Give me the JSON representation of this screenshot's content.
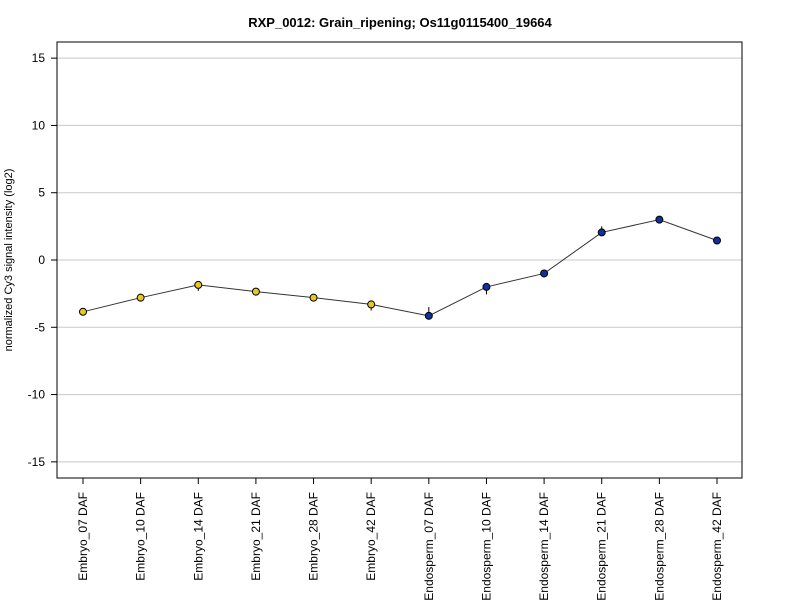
{
  "chart_data": {
    "type": "line",
    "title": "RXP_0012: Grain_ripening; Os11g0115400_19664",
    "xlabel": "",
    "ylabel": "normalized Cy3 signal intensity (log2)",
    "ylim": [
      -16.2,
      16.2
    ],
    "yticks": [
      -15,
      -10,
      -5,
      0,
      5,
      10,
      15
    ],
    "grid": true,
    "categories": [
      "Embryo_07 DAF",
      "Embryo_10 DAF",
      "Embryo_14 DAF",
      "Embryo_21 DAF",
      "Embryo_28 DAF",
      "Embryo_42 DAF",
      "Endosperm_07 DAF",
      "Endosperm_10 DAF",
      "Endosperm_14 DAF",
      "Endosperm_21 DAF",
      "Endosperm_28 DAF",
      "Endosperm_42 DAF"
    ],
    "series": [
      {
        "values": [
          -3.85,
          -2.8,
          -1.85,
          -2.35,
          -2.8,
          -3.3,
          -4.15,
          -2.0,
          -1.0,
          2.05,
          3.0,
          1.45
        ],
        "err_low": [
          -4.1,
          -2.9,
          -2.3,
          -2.45,
          -2.95,
          -3.75,
          -4.4,
          -2.55,
          -1.05,
          1.85,
          2.9,
          1.25
        ],
        "err_high": [
          -3.65,
          -2.7,
          -1.75,
          -2.2,
          -2.55,
          -3.05,
          -3.5,
          -1.85,
          -0.8,
          2.5,
          3.1,
          1.75
        ],
        "point_colors": [
          "#e8c820",
          "#e8c820",
          "#e8c820",
          "#e8c820",
          "#e8c820",
          "#e8c820",
          "#1030a0",
          "#1030a0",
          "#1030a0",
          "#1030a0",
          "#1030a0",
          "#1030a0"
        ]
      }
    ]
  }
}
